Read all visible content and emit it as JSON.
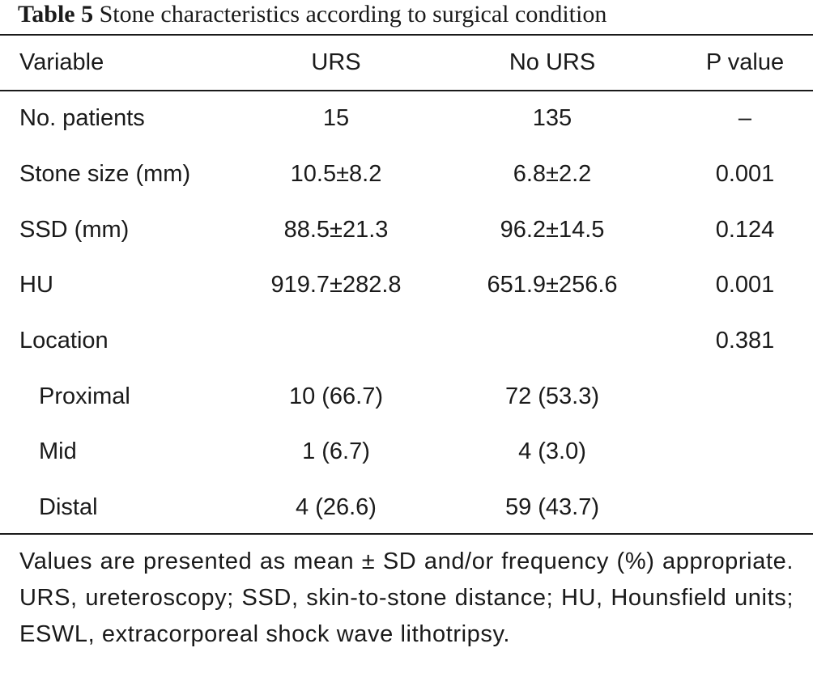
{
  "caption": {
    "label": "Table 5",
    "title": "Stone characteristics according to surgical condition"
  },
  "table": {
    "headers": [
      "Variable",
      "URS",
      "No URS",
      "P value"
    ],
    "rows": [
      {
        "variable": "No. patients",
        "urs": "15",
        "no_urs": "135",
        "p": "–"
      },
      {
        "variable": "Stone size (mm)",
        "urs": "10.5±8.2",
        "no_urs": "6.8±2.2",
        "p": "0.001"
      },
      {
        "variable": "SSD (mm)",
        "urs": "88.5±21.3",
        "no_urs": "96.2±14.5",
        "p": "0.124"
      },
      {
        "variable": "HU",
        "urs": "919.7±282.8",
        "no_urs": "651.9±256.6",
        "p": "0.001"
      },
      {
        "variable": "Location",
        "urs": "",
        "no_urs": "",
        "p": "0.381"
      },
      {
        "variable": "Proximal",
        "urs": "10 (66.7)",
        "no_urs": "72 (53.3)",
        "p": ""
      },
      {
        "variable": "Mid",
        "urs": "1 (6.7)",
        "no_urs": "4 (3.0)",
        "p": ""
      },
      {
        "variable": "Distal",
        "urs": "4 (26.6)",
        "no_urs": "59 (43.7)",
        "p": ""
      }
    ]
  },
  "footnote": "Values are presented as mean ± SD and/or frequency (%) appropriate. URS, ureteroscopy; SSD, skin-to-stone distance; HU, Hounsfield units; ESWL, extracorporeal shock wave lithotripsy."
}
